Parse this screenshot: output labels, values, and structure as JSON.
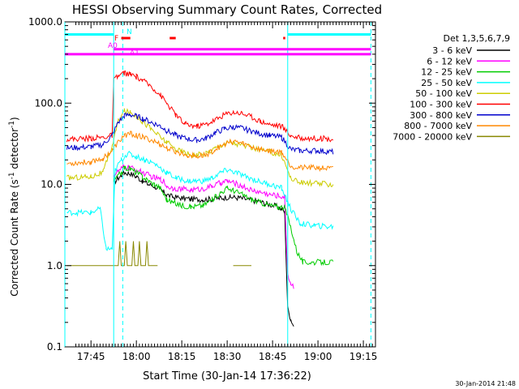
{
  "chart_data": {
    "type": "line",
    "title": "HESSI Observing Summary Count Rates, Corrected",
    "xlabel": "Start Time (30-Jan-14 17:36:22)",
    "ylabel_main": "Corrected Count Rate (s",
    "ylabel_sup1": "-1",
    "ylabel_mid": " detector",
    "ylabel_sup2": "-1",
    "ylabel_end": ")",
    "yscale": "log",
    "ylim": [
      0.1,
      1000
    ],
    "xlim_min": [
      36.37,
      139
    ],
    "yticks": [
      {
        "v": 1000,
        "label": "1000.0"
      },
      {
        "v": 100,
        "label": "100.0"
      },
      {
        "v": 10,
        "label": "10.0"
      },
      {
        "v": 1,
        "label": "1.0"
      },
      {
        "v": 0.1,
        "label": "0.1"
      }
    ],
    "xticks": [
      {
        "v": 45,
        "label": "17:45"
      },
      {
        "v": 60,
        "label": "18:00"
      },
      {
        "v": 75,
        "label": "18:15"
      },
      {
        "v": 90,
        "label": "18:30"
      },
      {
        "v": 105,
        "label": "18:45"
      },
      {
        "v": 120,
        "label": "19:00"
      },
      {
        "v": 135,
        "label": "19:15"
      }
    ],
    "legend_title": "Det 1,3,5,6,7,9",
    "legend_position": "right",
    "series": [
      {
        "name": "3 - 6 keV",
        "color": "#000000",
        "points": [
          [
            48,
            null
          ],
          [
            52.5,
            10.5
          ],
          [
            55,
            13
          ],
          [
            56,
            14
          ],
          [
            58,
            13.5
          ],
          [
            60,
            12.5
          ],
          [
            62,
            11
          ],
          [
            64,
            10
          ],
          [
            66,
            9.5
          ],
          [
            68,
            8.5
          ],
          [
            69,
            8
          ],
          [
            70,
            7.5
          ],
          [
            72,
            7
          ],
          [
            75,
            6.8
          ],
          [
            78,
            6.6
          ],
          [
            82,
            6.5
          ],
          [
            85,
            6.6
          ],
          [
            88,
            6.8
          ],
          [
            91,
            7
          ],
          [
            94,
            6.8
          ],
          [
            97,
            6.5
          ],
          [
            100,
            6.2
          ],
          [
            103,
            5.8
          ],
          [
            106,
            5.4
          ],
          [
            108,
            5
          ],
          [
            109,
            4.5
          ],
          [
            110,
            0.3
          ],
          [
            111,
            0.22
          ],
          [
            112,
            0.18
          ],
          [
            113,
            null
          ]
        ]
      },
      {
        "name": "6 - 12 keV",
        "color": "#ff00ff",
        "points": [
          [
            48,
            null
          ],
          [
            52.5,
            13
          ],
          [
            55,
            15.5
          ],
          [
            56,
            16.5
          ],
          [
            58,
            16
          ],
          [
            60,
            15
          ],
          [
            62,
            14
          ],
          [
            64,
            13
          ],
          [
            66,
            12
          ],
          [
            68,
            11.5
          ],
          [
            69,
            11
          ],
          [
            70,
            9.5
          ],
          [
            72,
            9
          ],
          [
            75,
            8.8
          ],
          [
            78,
            8.5
          ],
          [
            82,
            8.8
          ],
          [
            85,
            9.5
          ],
          [
            88,
            10.5
          ],
          [
            90,
            11
          ],
          [
            92,
            10.5
          ],
          [
            95,
            9.5
          ],
          [
            98,
            8.5
          ],
          [
            101,
            8
          ],
          [
            104,
            7.5
          ],
          [
            107,
            7.2
          ],
          [
            109,
            7
          ],
          [
            110,
            0.8
          ],
          [
            111,
            0.6
          ],
          [
            112,
            0.55
          ]
        ]
      },
      {
        "name": "12 - 25 keV",
        "color": "#00cc00",
        "points": [
          [
            48,
            null
          ],
          [
            52.5,
            11
          ],
          [
            55,
            14
          ],
          [
            56,
            16
          ],
          [
            58,
            15.5
          ],
          [
            60,
            14
          ],
          [
            62,
            12.5
          ],
          [
            64,
            11
          ],
          [
            66,
            10
          ],
          [
            68,
            9
          ],
          [
            70,
            6.5
          ],
          [
            72,
            6
          ],
          [
            75,
            5.5
          ],
          [
            78,
            5.3
          ],
          [
            82,
            5.5
          ],
          [
            85,
            6.5
          ],
          [
            88,
            8
          ],
          [
            90,
            9
          ],
          [
            92,
            8.5
          ],
          [
            95,
            7.5
          ],
          [
            98,
            6.5
          ],
          [
            101,
            6
          ],
          [
            104,
            5.5
          ],
          [
            107,
            5.3
          ],
          [
            109,
            5.2
          ],
          [
            111,
            3
          ],
          [
            113,
            1.5
          ],
          [
            115,
            1.1
          ],
          [
            125,
            1.1
          ]
        ]
      },
      {
        "name": "25 - 50 keV",
        "color": "#00ffff",
        "points": [
          [
            37,
            4.5
          ],
          [
            45,
            4.5
          ],
          [
            48,
            5
          ],
          [
            50,
            1.6
          ],
          [
            52,
            1.6
          ],
          [
            53,
            15
          ],
          [
            55,
            20
          ],
          [
            57,
            24
          ],
          [
            60,
            22
          ],
          [
            63,
            20
          ],
          [
            66,
            18
          ],
          [
            70,
            14
          ],
          [
            73,
            12
          ],
          [
            77,
            11
          ],
          [
            82,
            11
          ],
          [
            85,
            12
          ],
          [
            88,
            14
          ],
          [
            90,
            15
          ],
          [
            93,
            14
          ],
          [
            96,
            12.5
          ],
          [
            100,
            11
          ],
          [
            104,
            10
          ],
          [
            108,
            9
          ],
          [
            111,
            5
          ],
          [
            114,
            3.3
          ],
          [
            119,
            3.1
          ],
          [
            125,
            3
          ]
        ]
      },
      {
        "name": "50 - 100 keV",
        "color": "#cccc00",
        "points": [
          [
            37,
            12
          ],
          [
            45,
            12.5
          ],
          [
            49,
            14
          ],
          [
            52,
            30
          ],
          [
            54,
            60
          ],
          [
            56,
            80
          ],
          [
            58,
            76
          ],
          [
            60,
            70
          ],
          [
            62,
            60
          ],
          [
            65,
            48
          ],
          [
            68,
            38
          ],
          [
            70,
            33
          ],
          [
            73,
            27
          ],
          [
            77,
            24
          ],
          [
            80,
            23
          ],
          [
            83,
            24
          ],
          [
            86,
            28
          ],
          [
            89,
            32
          ],
          [
            91,
            33
          ],
          [
            94,
            31
          ],
          [
            97,
            29
          ],
          [
            100,
            27
          ],
          [
            104,
            25
          ],
          [
            108,
            23
          ],
          [
            111,
            12
          ],
          [
            114,
            10.5
          ],
          [
            119,
            10.3
          ],
          [
            125,
            10
          ]
        ]
      },
      {
        "name": "100 - 300 keV",
        "color": "#ff0000",
        "points": [
          [
            37,
            36
          ],
          [
            45,
            37
          ],
          [
            49,
            38
          ],
          [
            52,
            40
          ],
          [
            52.5,
            190
          ],
          [
            54,
            215
          ],
          [
            56,
            235
          ],
          [
            58,
            225
          ],
          [
            60,
            210
          ],
          [
            62,
            190
          ],
          [
            65,
            160
          ],
          [
            68,
            125
          ],
          [
            70,
            100
          ],
          [
            73,
            72
          ],
          [
            76,
            55
          ],
          [
            80,
            52
          ],
          [
            83,
            55
          ],
          [
            86,
            62
          ],
          [
            89,
            72
          ],
          [
            92,
            78
          ],
          [
            95,
            75
          ],
          [
            98,
            68
          ],
          [
            101,
            60
          ],
          [
            104,
            55
          ],
          [
            108,
            52
          ],
          [
            111,
            40
          ],
          [
            114,
            37
          ],
          [
            120,
            37
          ],
          [
            125,
            36
          ]
        ]
      },
      {
        "name": "300 - 800 keV",
        "color": "#0000cc",
        "points": [
          [
            37,
            28
          ],
          [
            45,
            29
          ],
          [
            49,
            31
          ],
          [
            52,
            40
          ],
          [
            54,
            58
          ],
          [
            56,
            70
          ],
          [
            58,
            72
          ],
          [
            60,
            69
          ],
          [
            62,
            65
          ],
          [
            65,
            58
          ],
          [
            68,
            52
          ],
          [
            70,
            46
          ],
          [
            73,
            40
          ],
          [
            77,
            36
          ],
          [
            80,
            35
          ],
          [
            83,
            37
          ],
          [
            86,
            43
          ],
          [
            89,
            48
          ],
          [
            92,
            51
          ],
          [
            95,
            49
          ],
          [
            98,
            45
          ],
          [
            101,
            42
          ],
          [
            104,
            40
          ],
          [
            108,
            38
          ],
          [
            111,
            27
          ],
          [
            114,
            26
          ],
          [
            120,
            26
          ],
          [
            125,
            25
          ]
        ]
      },
      {
        "name": "800 - 7000 keV",
        "color": "#ff8800",
        "points": [
          [
            37,
            18
          ],
          [
            45,
            19
          ],
          [
            49,
            21
          ],
          [
            52,
            26
          ],
          [
            54,
            33
          ],
          [
            56,
            40
          ],
          [
            58,
            42
          ],
          [
            60,
            40
          ],
          [
            62,
            38
          ],
          [
            65,
            35
          ],
          [
            68,
            31
          ],
          [
            70,
            28
          ],
          [
            73,
            25
          ],
          [
            77,
            23
          ],
          [
            80,
            22
          ],
          [
            83,
            23
          ],
          [
            86,
            27
          ],
          [
            89,
            31
          ],
          [
            92,
            34
          ],
          [
            95,
            32
          ],
          [
            98,
            29
          ],
          [
            101,
            27
          ],
          [
            104,
            26
          ],
          [
            108,
            25
          ],
          [
            111,
            17
          ],
          [
            114,
            16
          ],
          [
            120,
            16
          ],
          [
            125,
            15.5
          ]
        ]
      },
      {
        "name": "7000 - 20000 keV",
        "color": "#888800",
        "points": [
          [
            37,
            1
          ],
          [
            47,
            1
          ],
          [
            52,
            1
          ],
          [
            54,
            1
          ],
          [
            54.5,
            2
          ],
          [
            55,
            1
          ],
          [
            56,
            1
          ],
          [
            56.5,
            2
          ],
          [
            57,
            1
          ],
          [
            58.5,
            1
          ],
          [
            59,
            2
          ],
          [
            59.5,
            1
          ],
          [
            60.5,
            1
          ],
          [
            61,
            2
          ],
          [
            61.5,
            1
          ],
          [
            63,
            1
          ],
          [
            63.5,
            2
          ],
          [
            64,
            1
          ],
          [
            67,
            1
          ],
          [
            68,
            null
          ],
          [
            92,
            1
          ],
          [
            94,
            1
          ],
          [
            95,
            1
          ],
          [
            98,
            1
          ],
          [
            100,
            null
          ]
        ]
      }
    ],
    "annotations": {
      "A0": {
        "label": "A0",
        "color": "#ff00ff",
        "x": [
          36.37,
          137.5
        ],
        "y": 400
      },
      "A1": {
        "label": "A1",
        "color": "#ff00ff",
        "x": [
          52.5,
          137.5
        ],
        "y": 460
      },
      "N_label": {
        "label": "N",
        "color": "#00ffff"
      },
      "F_label": {
        "label": "F",
        "color": "#ff0000"
      },
      "night_bar_1": {
        "x": [
          36.37,
          52.5
        ],
        "y": 700,
        "color": "#00ffff"
      },
      "night_bar_2": {
        "x": [
          110,
          137.5
        ],
        "y": 700,
        "color": "#00ffff"
      },
      "flare_bars": [
        [
          55,
          58
        ],
        [
          71,
          73
        ],
        [
          108.5,
          109.2
        ]
      ],
      "vertical_lines": [
        {
          "x": 36.37,
          "color": "#00ffff",
          "style": "solid"
        },
        {
          "x": 52.5,
          "color": "#00ffff",
          "style": "solid"
        },
        {
          "x": 55.5,
          "color": "#00ffff",
          "style": "dashed"
        },
        {
          "x": 110,
          "color": "#00ffff",
          "style": "solid"
        },
        {
          "x": 137.5,
          "color": "#00ffff",
          "style": "dashed"
        }
      ]
    },
    "footer_timestamp": "30-Jan-2014 21:48"
  }
}
